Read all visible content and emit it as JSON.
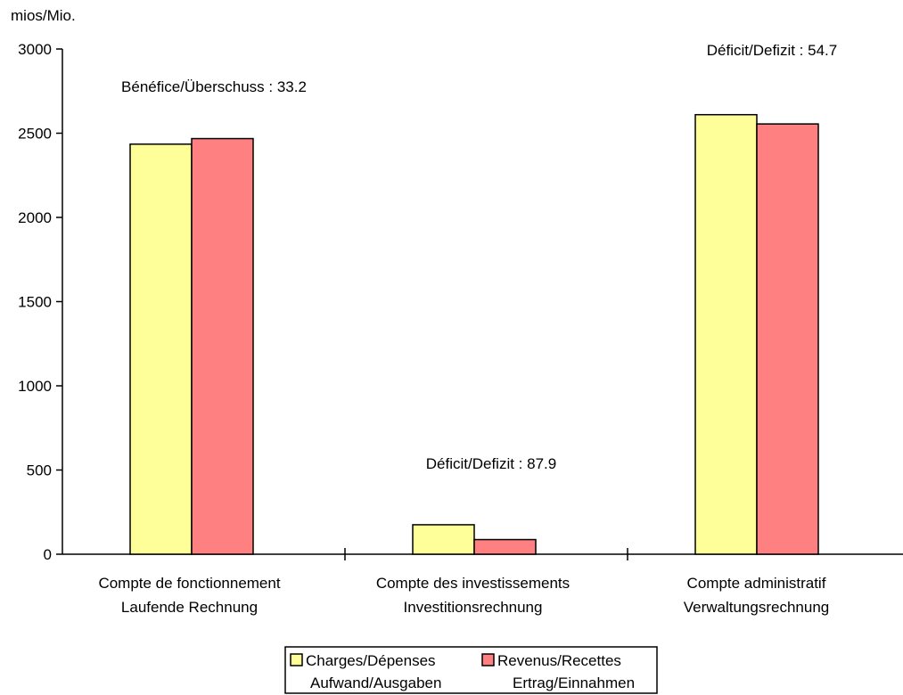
{
  "chart_data": {
    "type": "bar",
    "unit_label": "mios/Mio.",
    "categories": [
      [
        "Compte de fonctionnement",
        "Laufende Rechnung"
      ],
      [
        "Compte des investissements",
        "Investitionsrechnung"
      ],
      [
        "Compte administratif",
        "Verwaltungsrechnung"
      ]
    ],
    "series": [
      {
        "name": [
          "Charges/Dépenses",
          "Aufwand/Ausgaben"
        ],
        "color": "#ffff99",
        "values": [
          2435,
          175,
          2610
        ]
      },
      {
        "name": [
          "Revenus/Recettes",
          "Ertrag/Einnahmen"
        ],
        "color": "#ff8080",
        "values": [
          2468,
          87,
          2555
        ]
      }
    ],
    "annotations": [
      "Bénéfice/Überschuss : 33.2",
      "Déficit/Defizit : 87.9",
      "Déficit/Defizit : 54.7"
    ],
    "ylim": [
      0,
      3000
    ],
    "yticks": [
      0,
      500,
      1000,
      1500,
      2000,
      2500,
      3000
    ],
    "grid": false,
    "legend_position": "bottom"
  }
}
